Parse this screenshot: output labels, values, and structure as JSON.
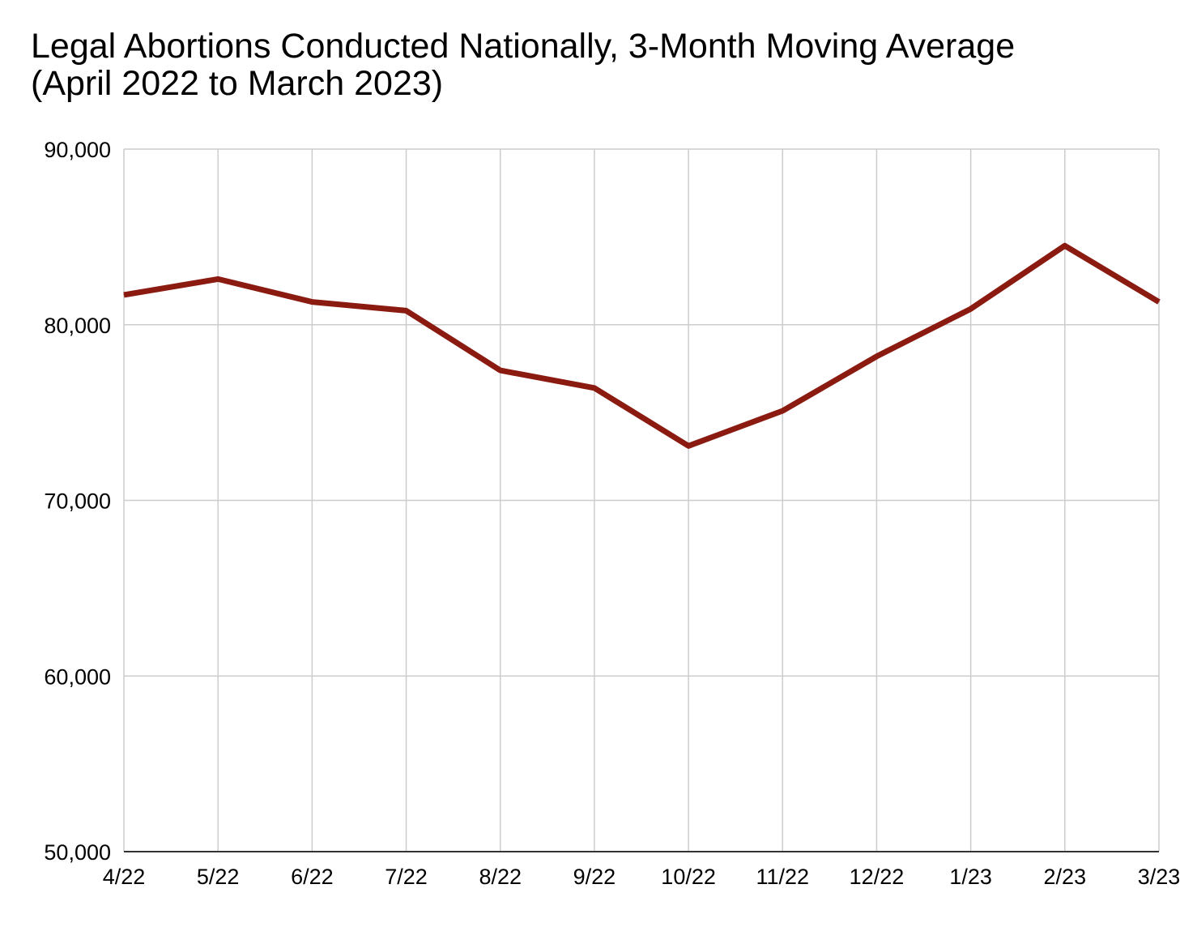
{
  "chart_data": {
    "type": "line",
    "title": "Legal Abortions Conducted Nationally, 3-Month Moving Average",
    "subtitle": "(April 2022 to March 2023)",
    "xlabel": "",
    "ylabel": "",
    "categories": [
      "4/22",
      "5/22",
      "6/22",
      "7/22",
      "8/22",
      "9/22",
      "10/22",
      "11/22",
      "12/22",
      "1/23",
      "2/23",
      "3/23"
    ],
    "series": [
      {
        "values": [
          81700,
          82600,
          81300,
          80800,
          77400,
          76400,
          73100,
          75100,
          78200,
          80900,
          84500,
          81300
        ],
        "color": "#8b1a10"
      }
    ],
    "ylim": [
      50000,
      90000
    ],
    "yticks": [
      50000,
      60000,
      70000,
      80000,
      90000
    ],
    "ytick_labels": [
      "50,000",
      "60,000",
      "70,000",
      "80,000",
      "90,000"
    ],
    "grid": true,
    "legend": "none",
    "gridline_color": "#cccccc"
  }
}
